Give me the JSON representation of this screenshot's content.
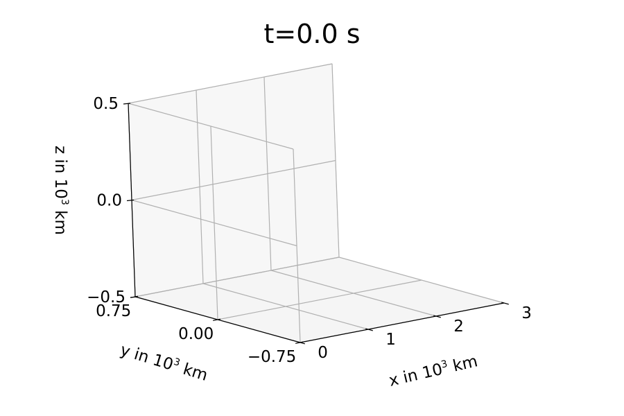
{
  "chart_data": {
    "type": "scatter",
    "projection": "3d",
    "title": "t=0.0 s",
    "series": [],
    "xlabel": {
      "pre": "x in 10",
      "exp": "3",
      "post": " km"
    },
    "ylabel": {
      "pre": "y in 10",
      "exp": "3",
      "post": " km"
    },
    "zlabel": {
      "pre": "z in 10",
      "exp": "3",
      "post": " km"
    },
    "xlim": [
      0,
      3
    ],
    "ylim": [
      -0.75,
      0.75
    ],
    "zlim": [
      -0.5,
      0.5
    ],
    "xticks": [
      0,
      1,
      2,
      3
    ],
    "xtick_labels": [
      "0",
      "1",
      "2",
      "3"
    ],
    "yticks": [
      -0.75,
      0.0,
      0.75
    ],
    "ytick_labels": [
      "−0.75",
      "0.00",
      "0.75"
    ],
    "zticks": [
      -0.5,
      0.0,
      0.5
    ],
    "ztick_labels": [
      "−0.5",
      "0.0",
      "0.5"
    ],
    "grid": true,
    "pane_colors": {
      "back_left": "#f2f2f2",
      "back_right": "#f7f7f7",
      "floor": "#f5f5f5",
      "grid": "#b0b0b0",
      "edge": "#dcdcdc",
      "axis": "#000000"
    }
  }
}
